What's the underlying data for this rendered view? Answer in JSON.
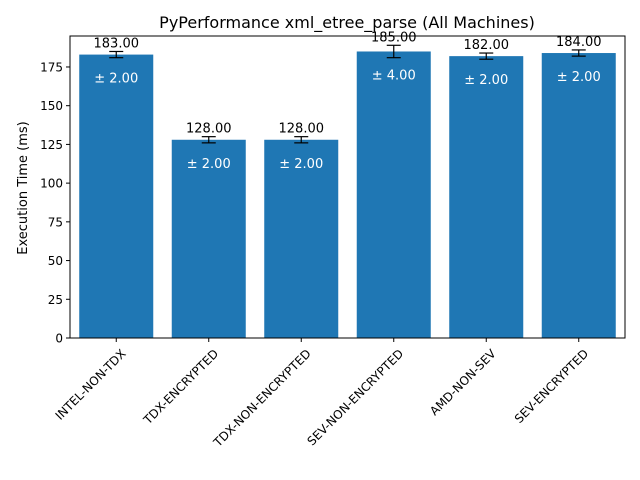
{
  "chart_data": {
    "type": "bar",
    "title": "PyPerformance xml_etree_parse (All Machines)",
    "xlabel": "",
    "ylabel": "Execution Time (ms)",
    "ylim": [
      0,
      195
    ],
    "yticks": [
      0,
      25,
      50,
      75,
      100,
      125,
      150,
      175
    ],
    "categories": [
      "INTEL-NON-TDX",
      "TDX-ENCRYPTED",
      "TDX-NON-ENCRYPTED",
      "SEV-NON-ENCRYPTED",
      "AMD-NON-SEV",
      "SEV-ENCRYPTED"
    ],
    "values": [
      183,
      128,
      128,
      185,
      182,
      184
    ],
    "errors": [
      2,
      2,
      2,
      4,
      2,
      2
    ],
    "value_labels": [
      "183.00",
      "128.00",
      "128.00",
      "185.00",
      "182.00",
      "184.00"
    ],
    "error_labels": [
      "± 2.00",
      "± 2.00",
      "± 2.00",
      "± 4.00",
      "± 2.00",
      "± 2.00"
    ],
    "bar_color": "#1f77b4",
    "grid": false,
    "legend": "none"
  }
}
